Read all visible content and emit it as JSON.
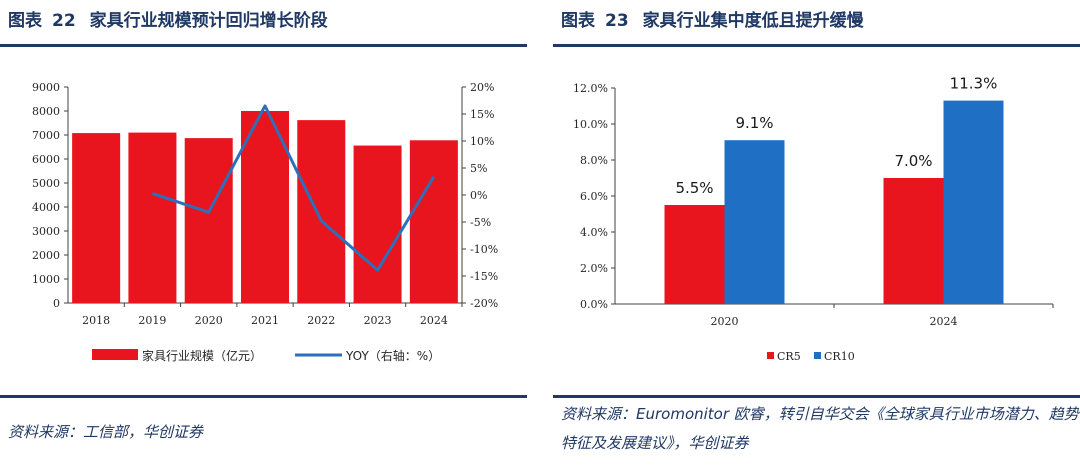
{
  "figures": [
    {
      "label": "图表",
      "number": "22",
      "title": "家具行业规模预计回归增长阶段",
      "source": "资料来源：工信部，华创证券"
    },
    {
      "label": "图表",
      "number": "23",
      "title": "家具行业集中度低且提升缓慢",
      "source": "资料来源：Euromonitor 欧睿，转引自华交会《全球家具行业市场潜力、趋势特征及发展建议》，华创证券"
    }
  ],
  "chart_data": [
    {
      "type": "bar",
      "title": "家具行业规模预计回归增长阶段",
      "categories": [
        "2018",
        "2019",
        "2020",
        "2021",
        "2022",
        "2023",
        "2024"
      ],
      "series": [
        {
          "name": "家具行业规模（亿元）",
          "type": "bar",
          "axis": "left",
          "color": "#e8141e",
          "values": [
            7080,
            7100,
            6870,
            8000,
            7620,
            6560,
            6780
          ]
        },
        {
          "name": "YOY（右轴：%）",
          "type": "line",
          "axis": "right",
          "color": "#2e6fba",
          "values": [
            null,
            0.3,
            -3.2,
            16.5,
            -4.8,
            -13.9,
            3.4
          ]
        }
      ],
      "y_left": {
        "min": 0,
        "max": 9000,
        "ticks": [
          "0",
          "1000",
          "2000",
          "3000",
          "4000",
          "5000",
          "6000",
          "7000",
          "8000",
          "9000"
        ]
      },
      "y_right": {
        "min": -20,
        "max": 20,
        "ticks": [
          "-20%",
          "-15%",
          "-10%",
          "-5%",
          "0%",
          "5%",
          "10%",
          "15%",
          "20%"
        ]
      },
      "legend_position": "bottom"
    },
    {
      "type": "bar",
      "title": "家具行业集中度低且提升缓慢",
      "categories": [
        "2020",
        "2024"
      ],
      "series": [
        {
          "name": "CR5",
          "color": "#e8141e",
          "values": [
            5.5,
            7.0
          ],
          "labels": [
            "5.5%",
            "7.0%"
          ]
        },
        {
          "name": "CR10",
          "color": "#1f6fc5",
          "values": [
            9.1,
            11.3
          ],
          "labels": [
            "9.1%",
            "11.3%"
          ]
        }
      ],
      "y": {
        "min": 0,
        "max": 12,
        "ticks": [
          "0.0%",
          "2.0%",
          "4.0%",
          "6.0%",
          "8.0%",
          "10.0%",
          "12.0%"
        ]
      },
      "legend_position": "bottom"
    }
  ]
}
